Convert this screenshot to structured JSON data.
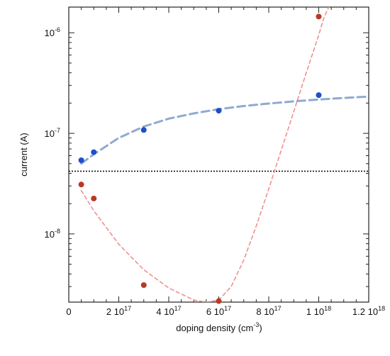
{
  "chart_data": {
    "type": "scatter",
    "title": "",
    "xlabel": "doping density (cm",
    "xlabel_sup": "-3",
    "xlabel_close": ")",
    "ylabel": "current (A)",
    "x_scale": "linear",
    "y_scale": "log",
    "xlim": [
      0,
      1.2e+18
    ],
    "ylim": [
      2.1e-09,
      1.8e-06
    ],
    "grid": false,
    "legend": "none",
    "x_ticks": [
      {
        "value": 0,
        "mant": "0",
        "exp": ""
      },
      {
        "value": 2e+17,
        "mant": "2 10",
        "exp": "17"
      },
      {
        "value": 4e+17,
        "mant": "4 10",
        "exp": "17"
      },
      {
        "value": 6e+17,
        "mant": "6 10",
        "exp": "17"
      },
      {
        "value": 8e+17,
        "mant": "8 10",
        "exp": "17"
      },
      {
        "value": 1e+18,
        "mant": "1 10",
        "exp": "18"
      },
      {
        "value": 1.2e+18,
        "mant": "1.2 10",
        "exp": "18"
      }
    ],
    "y_ticks": [
      {
        "value": 1e-08,
        "mant": "10",
        "exp": "-8"
      },
      {
        "value": 1e-07,
        "mant": "10",
        "exp": "-7"
      },
      {
        "value": 1e-06,
        "mant": "10",
        "exp": "-6"
      }
    ],
    "series": [
      {
        "color": "#1f4fc8",
        "points": [
          [
            5e+16,
            5.4e-08
          ],
          [
            1e+17,
            6.5e-08
          ],
          [
            3e+17,
            1.08e-07
          ],
          [
            6e+17,
            1.68e-07
          ],
          [
            1e+18,
            2.4e-07
          ]
        ],
        "fit": {
          "color": "#8faad0",
          "points": [
            [
              5e+16,
              5e-08
            ],
            [
              1e+17,
              6.2e-08
            ],
            [
              2e+17,
              9e-08
            ],
            [
              3e+17,
              1.17e-07
            ],
            [
              4e+17,
              1.4e-07
            ],
            [
              5e+17,
              1.58e-07
            ],
            [
              6e+17,
              1.74e-07
            ],
            [
              7e+17,
              1.87e-07
            ],
            [
              8e+17,
              1.98e-07
            ],
            [
              9e+17,
              2.08e-07
            ],
            [
              1e+18,
              2.17e-07
            ],
            [
              1.1e+18,
              2.25e-07
            ],
            [
              1.2e+18,
              2.32e-07
            ]
          ]
        }
      },
      {
        "color": "#b83a26",
        "points": [
          [
            5e+16,
            3.1e-08
          ],
          [
            1e+17,
            2.25e-08
          ],
          [
            3e+17,
            3.1e-09
          ],
          [
            6e+17,
            2.15e-09
          ],
          [
            1e+18,
            1.45e-06
          ]
        ],
        "fit": {
          "color": "#f09090",
          "points": [
            [
              5e+16,
              2.7e-08
            ],
            [
              1e+17,
              1.7e-08
            ],
            [
              2e+17,
              7.9e-09
            ],
            [
              3e+17,
              4.4e-09
            ],
            [
              4e+17,
              2.9e-09
            ],
            [
              5e+17,
              2.2e-09
            ],
            [
              5.5e+17,
              2.1e-09
            ],
            [
              6e+17,
              2.2e-09
            ],
            [
              6.5e+17,
              3e-09
            ],
            [
              7e+17,
              5.5e-09
            ],
            [
              7.5e+17,
              1.2e-08
            ],
            [
              8e+17,
              2.8e-08
            ],
            [
              8.5e+17,
              6.8e-08
            ],
            [
              9e+17,
              1.65e-07
            ],
            [
              9.5e+17,
              4e-07
            ],
            [
              1e+18,
              9.5e-07
            ],
            [
              1.02e+18,
              1.4e-06
            ],
            [
              1.04e+18,
              1.8e-06
            ]
          ]
        }
      }
    ],
    "reference_line": {
      "value": 4.2e-08,
      "color": "#111111",
      "style": "dotted"
    }
  }
}
